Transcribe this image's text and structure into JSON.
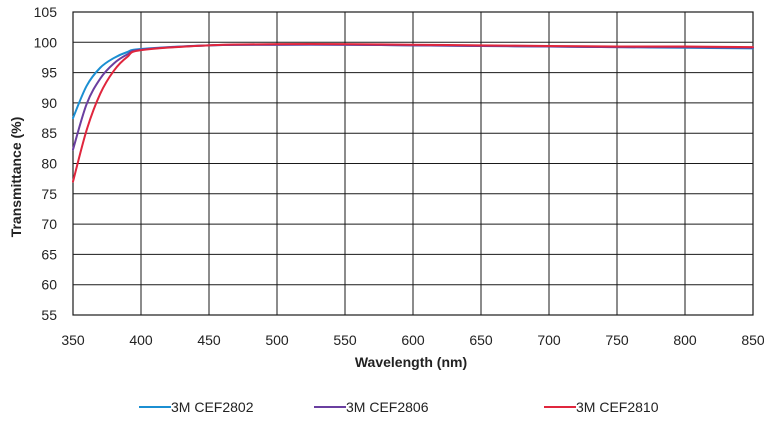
{
  "chart_data": {
    "type": "line",
    "title": "",
    "xlabel": "Wavelength (nm)",
    "ylabel": "Transmittance (%)",
    "xlim": [
      350,
      850
    ],
    "ylim": [
      55,
      105
    ],
    "xticks": [
      350,
      400,
      450,
      500,
      550,
      600,
      650,
      700,
      750,
      800,
      850
    ],
    "yticks": [
      55,
      60,
      65,
      70,
      75,
      80,
      85,
      90,
      95,
      100,
      105
    ],
    "grid": true,
    "legend_position": "bottom",
    "series": [
      {
        "name": "3M CEF2802",
        "color": "#1b8fd2",
        "x": [
          350,
          360,
          370,
          380,
          390,
          400,
          450,
          500,
          550,
          600,
          650,
          700,
          750,
          800,
          850
        ],
        "y": [
          87.5,
          92.8,
          95.8,
          97.4,
          98.4,
          98.9,
          99.5,
          99.6,
          99.6,
          99.5,
          99.4,
          99.3,
          99.2,
          99.1,
          99.0
        ]
      },
      {
        "name": "3M CEF2806",
        "color": "#6a3fa0",
        "x": [
          350,
          360,
          370,
          380,
          390,
          400,
          450,
          500,
          550,
          600,
          650,
          700,
          750,
          800,
          850
        ],
        "y": [
          82.3,
          89.8,
          94.0,
          96.5,
          98.0,
          98.8,
          99.5,
          99.6,
          99.6,
          99.5,
          99.4,
          99.3,
          99.2,
          99.2,
          99.1
        ]
      },
      {
        "name": "3M CEF2810",
        "color": "#e0263d",
        "x": [
          350,
          360,
          370,
          380,
          390,
          400,
          450,
          500,
          550,
          600,
          650,
          700,
          750,
          800,
          850
        ],
        "y": [
          77.0,
          85.5,
          91.5,
          95.3,
          97.6,
          98.7,
          99.5,
          99.7,
          99.7,
          99.6,
          99.5,
          99.4,
          99.3,
          99.3,
          99.2
        ]
      }
    ]
  }
}
